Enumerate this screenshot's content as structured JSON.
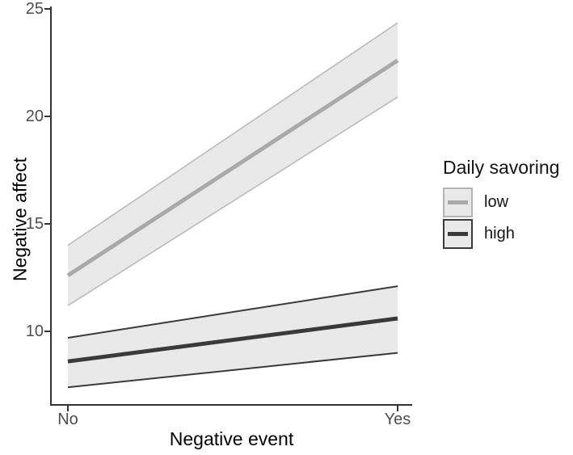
{
  "chart_data": {
    "type": "line",
    "title": "",
    "xlabel": "Negative event",
    "ylabel": "Negative affect",
    "x_tick_labels": [
      "No",
      "Yes"
    ],
    "y_tick_labels": [
      "25",
      "20",
      "15",
      "10"
    ],
    "y_ticks": [
      25,
      20,
      15,
      10
    ],
    "ylim": [
      6.6,
      25
    ],
    "grid": false,
    "background": "#ffffff",
    "axis_color": "#333333",
    "tick_text_color": "#4d4d4d",
    "legend": {
      "title": "Daily savoring",
      "position": "right"
    },
    "series": [
      {
        "name": "low",
        "color": "#a9a9a9",
        "edge_color": "#bdbdbd",
        "ribbon_fill": "#e9e9e9",
        "x": [
          "No",
          "Yes"
        ],
        "values": [
          12.6,
          22.6
        ],
        "ci_lower": [
          11.2,
          20.9
        ],
        "ci_upper": [
          14.0,
          24.35
        ]
      },
      {
        "name": "high",
        "color": "#3a3a3a",
        "edge_color": "#3a3a3a",
        "ribbon_fill": "#e9e9e9",
        "x": [
          "No",
          "Yes"
        ],
        "values": [
          8.6,
          10.6
        ],
        "ci_lower": [
          7.4,
          9.0
        ],
        "ci_upper": [
          9.7,
          12.1
        ]
      }
    ]
  }
}
